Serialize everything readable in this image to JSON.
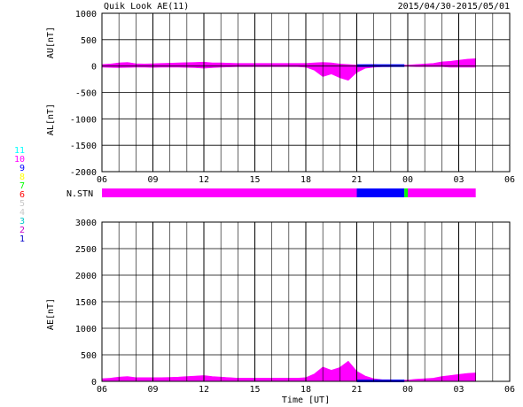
{
  "header": {
    "title": "Quik Look AE(11)",
    "date_range": "2015/04/30-2015/05/01"
  },
  "station_legend": {
    "label": "N.STN",
    "entries": [
      {
        "num": "11",
        "color": "#00ffff"
      },
      {
        "num": "10",
        "color": "#ff00ff"
      },
      {
        "num": "9",
        "color": "#0000ff"
      },
      {
        "num": "8",
        "color": "#ffff00"
      },
      {
        "num": "7",
        "color": "#00ff00"
      },
      {
        "num": "6",
        "color": "#ff0000"
      },
      {
        "num": "5",
        "color": "#c8c8c8"
      },
      {
        "num": "4",
        "color": "#c8c8c8"
      },
      {
        "num": "3",
        "color": "#00c8c8"
      },
      {
        "num": "2",
        "color": "#c800c8"
      },
      {
        "num": "1",
        "color": "#0000c8"
      }
    ]
  },
  "chart_data": [
    {
      "type": "area",
      "name": "AU/AL",
      "ylabel_top": "AU[nT]",
      "ylabel_bottom": "AL[nT]",
      "ylim": [
        -2000,
        1000
      ],
      "yticks": [
        1000,
        500,
        0,
        -500,
        -1000,
        -1500,
        -2000
      ],
      "xlabel": "",
      "xlim_hours": [
        0,
        24
      ],
      "xticks": [
        "06",
        "09",
        "12",
        "15",
        "18",
        "21",
        "00",
        "03",
        "06"
      ],
      "grid": true,
      "fill_color": "#ff00ff",
      "low_station_color": "#0000ff",
      "series": [
        {
          "name": "AU",
          "x": [
            0,
            0.5,
            1,
            1.5,
            2,
            2.5,
            3,
            3.5,
            4,
            4.5,
            5,
            5.5,
            6,
            6.5,
            7,
            7.5,
            8,
            8.5,
            9,
            9.5,
            10,
            10.5,
            11,
            11.5,
            12,
            12.5,
            13,
            13.5,
            14,
            14.5,
            15,
            15.5,
            16,
            16.5,
            17,
            17.5,
            18,
            18.5,
            19,
            19.5,
            20,
            20.5,
            21,
            21.5,
            22
          ],
          "values": [
            30,
            40,
            60,
            70,
            45,
            40,
            45,
            50,
            55,
            60,
            65,
            70,
            75,
            60,
            60,
            55,
            50,
            50,
            50,
            50,
            50,
            50,
            50,
            50,
            50,
            60,
            70,
            60,
            40,
            30,
            20,
            25,
            30,
            20,
            20,
            20,
            20,
            30,
            40,
            50,
            80,
            90,
            110,
            130,
            140
          ]
        },
        {
          "name": "AL",
          "x": [
            0,
            0.5,
            1,
            1.5,
            2,
            2.5,
            3,
            3.5,
            4,
            4.5,
            5,
            5.5,
            6,
            6.5,
            7,
            7.5,
            8,
            8.5,
            9,
            9.5,
            10,
            10.5,
            11,
            11.5,
            12,
            12.5,
            13,
            13.5,
            14,
            14.5,
            15,
            15.5,
            16,
            16.5,
            17,
            17.5,
            18,
            18.5,
            19,
            19.5,
            20,
            20.5,
            21,
            21.5,
            22
          ],
          "values": [
            -20,
            -25,
            -30,
            -25,
            -20,
            -20,
            -25,
            -20,
            -20,
            -20,
            -25,
            -30,
            -40,
            -30,
            -20,
            -15,
            -10,
            -10,
            -10,
            -10,
            -10,
            -10,
            -10,
            -10,
            -20,
            -80,
            -200,
            -150,
            -220,
            -270,
            -120,
            -40,
            -20,
            -10,
            -10,
            -5,
            -5,
            -10,
            -10,
            -10,
            -10,
            -20,
            -20,
            -20,
            -20
          ]
        }
      ]
    },
    {
      "type": "bar",
      "name": "N.STN",
      "ylabel": "N.STN",
      "segments": [
        {
          "start": 0,
          "end": 15,
          "stations": 10,
          "color": "#ff00ff"
        },
        {
          "start": 15,
          "end": 17.8,
          "stations": 9,
          "color": "#0000ff"
        },
        {
          "start": 17.8,
          "end": 18.0,
          "stations": 7,
          "color": "#00ff00"
        },
        {
          "start": 18.0,
          "end": 22,
          "stations": 10,
          "color": "#ff00ff"
        }
      ]
    },
    {
      "type": "area",
      "name": "AE",
      "ylabel": "AE[nT]",
      "xlabel": "Time [UT]",
      "ylim": [
        0,
        3000
      ],
      "yticks": [
        3000,
        2500,
        2000,
        1500,
        1000,
        500,
        0
      ],
      "xlim_hours": [
        0,
        24
      ],
      "xticks": [
        "06",
        "09",
        "12",
        "15",
        "18",
        "21",
        "00",
        "03",
        "06"
      ],
      "grid": true,
      "fill_color": "#ff00ff",
      "low_station_color": "#0000ff",
      "series": [
        {
          "name": "AE",
          "x": [
            0,
            0.5,
            1,
            1.5,
            2,
            2.5,
            3,
            3.5,
            4,
            4.5,
            5,
            5.5,
            6,
            6.5,
            7,
            7.5,
            8,
            8.5,
            9,
            9.5,
            10,
            10.5,
            11,
            11.5,
            12,
            12.5,
            13,
            13.5,
            14,
            14.5,
            15,
            15.5,
            16,
            16.5,
            17,
            17.5,
            18,
            18.5,
            19,
            19.5,
            20,
            20.5,
            21,
            21.5,
            22
          ],
          "values": [
            50,
            60,
            80,
            90,
            70,
            70,
            70,
            70,
            75,
            80,
            90,
            100,
            110,
            90,
            80,
            70,
            60,
            60,
            60,
            60,
            60,
            60,
            60,
            60,
            70,
            140,
            270,
            210,
            260,
            380,
            190,
            100,
            50,
            30,
            30,
            25,
            25,
            40,
            50,
            60,
            90,
            110,
            130,
            150,
            160
          ]
        }
      ]
    }
  ]
}
